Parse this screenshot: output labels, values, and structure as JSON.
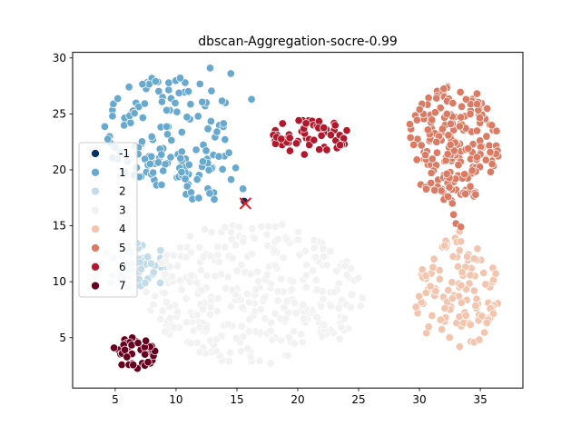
{
  "chart_data": {
    "type": "scatter",
    "title": "dbscan-Aggregation-socre-0.99",
    "xlabel": "",
    "ylabel": "",
    "xlim": [
      1.5,
      38.5
    ],
    "ylim": [
      0.5,
      30.5
    ],
    "xticks": [
      5,
      10,
      15,
      20,
      25,
      30,
      35
    ],
    "yticks": [
      5,
      10,
      15,
      20,
      25,
      30
    ],
    "grid": false,
    "legend": {
      "placement": "center-left",
      "entries": [
        "-1",
        "1",
        "2",
        "3",
        "4",
        "5",
        "6",
        "7"
      ]
    },
    "centroid_marker": {
      "x": 15.7,
      "y": 17.0,
      "symbol": "x",
      "color": "#e8191e"
    },
    "series": [
      {
        "label": "-1",
        "color": "#053061",
        "clusters": [],
        "points": [
          [
            15.6,
            17.2
          ]
        ]
      },
      {
        "label": "1",
        "color": "#67a9cf",
        "clusters": [
          {
            "shape": "ellipse",
            "cx": 9.5,
            "cy": 23.5,
            "rx": 5.5,
            "ry": 5.0,
            "n": 130
          },
          {
            "shape": "ellipse",
            "cx": 12.5,
            "cy": 19.5,
            "rx": 2.5,
            "ry": 2.5,
            "n": 25
          }
        ],
        "points": [
          [
            12.8,
            29.1
          ],
          [
            14.5,
            28.6
          ],
          [
            16.2,
            26.3
          ],
          [
            15.5,
            18.3
          ],
          [
            5.0,
            22.0
          ]
        ]
      },
      {
        "label": "2",
        "color": "#c3dcea",
        "clusters": [
          {
            "shape": "ellipse",
            "cx": 6.5,
            "cy": 11.5,
            "rx": 2.8,
            "ry": 2.2,
            "n": 45
          }
        ],
        "points": [
          [
            9.3,
            10.3
          ],
          [
            8.7,
            9.9
          ]
        ]
      },
      {
        "label": "3",
        "color": "#f2f2f2",
        "clusters": [
          {
            "shape": "ellipse",
            "cx": 16.5,
            "cy": 9.0,
            "rx": 9.0,
            "ry": 6.5,
            "n": 330
          }
        ],
        "points": []
      },
      {
        "label": "4",
        "color": "#f4c5ae",
        "clusters": [
          {
            "shape": "ellipse",
            "cx": 33.0,
            "cy": 9.0,
            "rx": 3.6,
            "ry": 5.0,
            "n": 120
          }
        ],
        "points": [
          [
            33.3,
            14.5
          ],
          [
            33.4,
            13.6
          ],
          [
            33.3,
            12.8
          ]
        ]
      },
      {
        "label": "5",
        "color": "#dc7b64",
        "clusters": [
          {
            "shape": "ellipse",
            "cx": 32.8,
            "cy": 22.3,
            "rx": 3.9,
            "ry": 5.2,
            "n": 210
          }
        ],
        "points": [
          [
            32.7,
            17.0
          ],
          [
            32.8,
            16.0
          ],
          [
            33.0,
            15.2
          ],
          [
            33.4,
            14.9
          ]
        ]
      },
      {
        "label": "6",
        "color": "#b2182b",
        "clusters": [
          {
            "shape": "ellipse",
            "cx": 21.0,
            "cy": 23.0,
            "rx": 3.2,
            "ry": 1.7,
            "n": 60
          }
        ],
        "points": []
      },
      {
        "label": "7",
        "color": "#67001f",
        "clusters": [
          {
            "shape": "ellipse",
            "cx": 6.6,
            "cy": 3.6,
            "rx": 1.8,
            "ry": 1.5,
            "n": 40
          }
        ],
        "points": []
      }
    ]
  }
}
